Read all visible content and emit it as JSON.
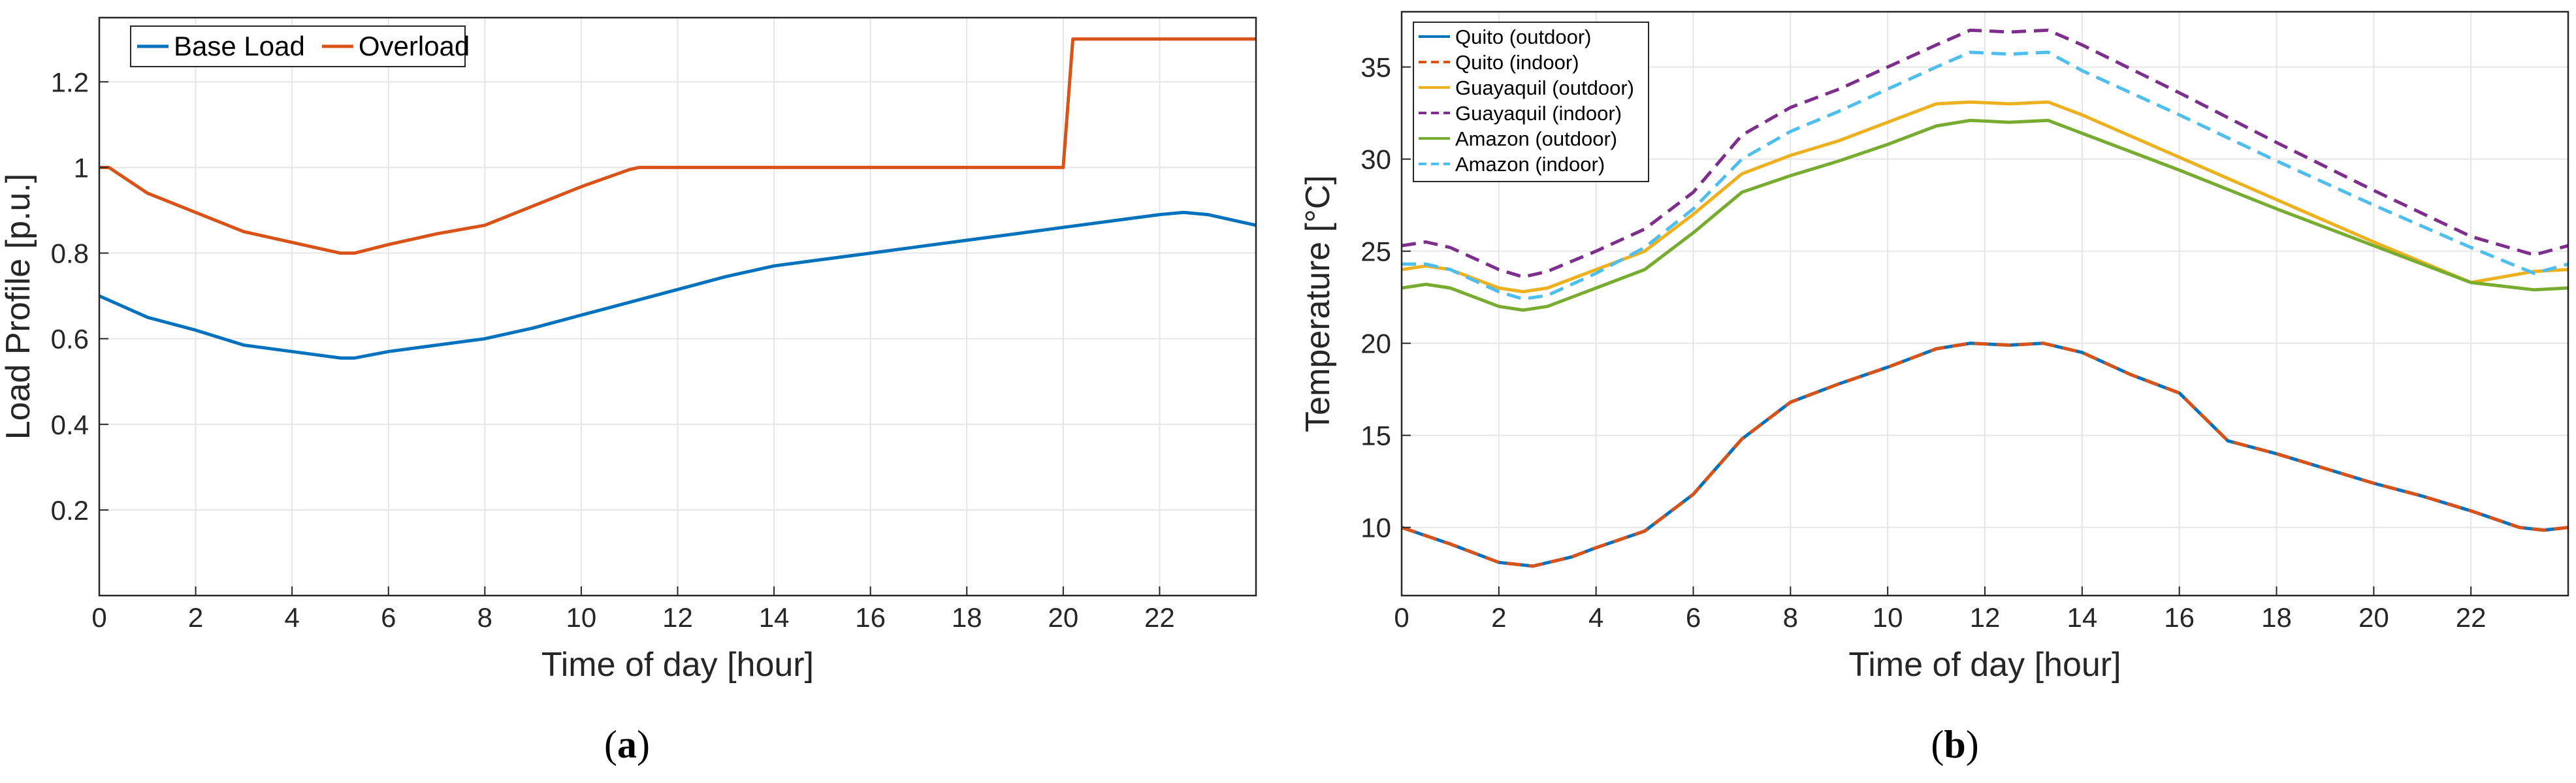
{
  "chart_data": [
    {
      "type": "line",
      "panel_label": "a",
      "xlabel": "Time of day [hour]",
      "ylabel": "Load Profile [p.u.]",
      "xlim": [
        0,
        24
      ],
      "ylim": [
        0,
        1.35
      ],
      "xticks": [
        0,
        2,
        4,
        6,
        8,
        10,
        12,
        14,
        16,
        18,
        20,
        22
      ],
      "xtick_labels": [
        "0",
        "2",
        "4",
        "6",
        "8",
        "10",
        "12",
        "14",
        "16",
        "18",
        "20",
        "22"
      ],
      "yticks": [
        0.2,
        0.4,
        0.6,
        0.8,
        1.0,
        1.2
      ],
      "ytick_labels": [
        "0.2",
        "0.4",
        "0.6",
        "0.8",
        "1",
        "1.2"
      ],
      "grid": true,
      "legend_position": "top-left",
      "series": [
        {
          "name": "Base Load",
          "color": "#0072BD",
          "dash": "solid",
          "x": [
            0,
            1,
            2,
            3,
            4,
            5,
            5.3,
            6,
            7,
            8,
            9,
            10,
            11,
            12,
            13,
            14,
            15,
            16,
            17,
            18,
            19,
            20,
            21,
            22,
            22.5,
            23,
            24
          ],
          "y": [
            0.7,
            0.65,
            0.62,
            0.585,
            0.57,
            0.555,
            0.555,
            0.57,
            0.585,
            0.6,
            0.625,
            0.655,
            0.685,
            0.715,
            0.745,
            0.77,
            0.785,
            0.8,
            0.815,
            0.83,
            0.845,
            0.86,
            0.875,
            0.89,
            0.895,
            0.89,
            0.865
          ]
        },
        {
          "name": "Overload",
          "color": "#D95319",
          "dash": "solid",
          "x": [
            0,
            0.2,
            1,
            2,
            3,
            4,
            5,
            5.3,
            6,
            7,
            8,
            9,
            10,
            11,
            11.2,
            12,
            14,
            16,
            18,
            20,
            20.2,
            21,
            22,
            23,
            24
          ],
          "y": [
            1.0,
            1.0,
            0.94,
            0.895,
            0.85,
            0.825,
            0.8,
            0.8,
            0.82,
            0.845,
            0.865,
            0.91,
            0.955,
            0.995,
            1.0,
            1.0,
            1.0,
            1.0,
            1.0,
            1.0,
            1.3,
            1.3,
            1.3,
            1.3,
            1.3
          ]
        }
      ]
    },
    {
      "type": "line",
      "panel_label": "b",
      "xlabel": "Time of day [hour]",
      "ylabel": "Temperature [°C]",
      "xlim": [
        0,
        24
      ],
      "ylim": [
        6.3,
        38
      ],
      "xticks": [
        0,
        2,
        4,
        6,
        8,
        10,
        12,
        14,
        16,
        18,
        20,
        22
      ],
      "xtick_labels": [
        "0",
        "2",
        "4",
        "6",
        "8",
        "10",
        "12",
        "14",
        "16",
        "18",
        "20",
        "22"
      ],
      "yticks": [
        10,
        15,
        20,
        25,
        30,
        35
      ],
      "ytick_labels": [
        "10",
        "15",
        "20",
        "25",
        "30",
        "35"
      ],
      "grid": true,
      "legend_position": "top-left",
      "series": [
        {
          "name": "Quito (outdoor)",
          "color": "#0072BD",
          "dash": "solid",
          "x": [
            0,
            1,
            2,
            2.7,
            3.5,
            4,
            5,
            6,
            7,
            8,
            9,
            10,
            11,
            11.7,
            12.5,
            13.2,
            14,
            15,
            16,
            17,
            18,
            19,
            20,
            21,
            22,
            23,
            23.5,
            24
          ],
          "y": [
            10.0,
            9.1,
            8.1,
            7.9,
            8.4,
            8.9,
            9.8,
            11.8,
            14.8,
            16.8,
            17.8,
            18.7,
            19.7,
            20.0,
            19.9,
            20.0,
            19.5,
            18.3,
            17.3,
            14.7,
            14.0,
            13.2,
            12.4,
            11.7,
            10.9,
            10.0,
            9.85,
            10.0
          ]
        },
        {
          "name": "Quito (indoor)",
          "color": "#D95319",
          "dash": "dashed",
          "x": [
            0,
            1,
            2,
            2.7,
            3.5,
            4,
            5,
            6,
            7,
            8,
            9,
            10,
            11,
            11.7,
            12.5,
            13.2,
            14,
            15,
            16,
            17,
            18,
            19,
            20,
            21,
            22,
            23,
            23.5,
            24
          ],
          "y": [
            10.0,
            9.1,
            8.1,
            7.9,
            8.4,
            8.9,
            9.8,
            11.8,
            14.8,
            16.8,
            17.8,
            18.7,
            19.7,
            20.0,
            19.9,
            20.0,
            19.5,
            18.3,
            17.3,
            14.7,
            14.0,
            13.2,
            12.4,
            11.7,
            10.9,
            10.0,
            9.85,
            10.0
          ]
        },
        {
          "name": "Guayaquil (outdoor)",
          "color": "#EDB120",
          "dash": "solid",
          "x": [
            0,
            0.5,
            1,
            2,
            2.5,
            3,
            4,
            5,
            6,
            7,
            8,
            9,
            10,
            11,
            11.7,
            12.5,
            13.3,
            14,
            16,
            18,
            20,
            22,
            23.3,
            24
          ],
          "y": [
            24.0,
            24.2,
            24.0,
            23.0,
            22.8,
            23.0,
            24.0,
            25.0,
            27.0,
            29.2,
            30.2,
            31.0,
            32.0,
            33.0,
            33.1,
            33.0,
            33.1,
            32.4,
            30.1,
            27.8,
            25.5,
            23.3,
            23.9,
            24.0
          ]
        },
        {
          "name": "Guayaquil (indoor)",
          "color": "#7E2F8E",
          "dash": "dashed",
          "x": [
            0,
            0.5,
            1,
            2,
            2.5,
            3,
            4,
            5,
            6,
            7,
            8,
            9,
            10,
            11,
            11.7,
            12.5,
            13.3,
            14,
            16,
            18,
            20,
            22,
            23.3,
            24
          ],
          "y": [
            25.3,
            25.5,
            25.2,
            24.0,
            23.6,
            23.9,
            25.0,
            26.2,
            28.2,
            31.3,
            32.8,
            33.8,
            35.0,
            36.2,
            37.0,
            36.9,
            37.0,
            36.2,
            33.6,
            30.9,
            28.3,
            25.8,
            24.8,
            25.3
          ]
        },
        {
          "name": "Amazon (outdoor)",
          "color": "#77AC30",
          "dash": "solid",
          "x": [
            0,
            0.5,
            1,
            2,
            2.5,
            3,
            4,
            5,
            6,
            7,
            8,
            9,
            10,
            11,
            11.7,
            12.5,
            13.3,
            14,
            16,
            18,
            20,
            22,
            23.3,
            24
          ],
          "y": [
            23.0,
            23.2,
            23.0,
            22.0,
            21.8,
            22.0,
            23.0,
            24.0,
            26.0,
            28.2,
            29.1,
            29.9,
            30.8,
            31.8,
            32.1,
            32.0,
            32.1,
            31.4,
            29.4,
            27.3,
            25.3,
            23.3,
            22.9,
            23.0
          ]
        },
        {
          "name": "Amazon (indoor)",
          "color": "#4DBEEE",
          "dash": "dashed",
          "x": [
            0,
            0.5,
            1,
            2,
            2.5,
            3,
            4,
            5,
            6,
            7,
            8,
            9,
            10,
            11,
            11.7,
            12.5,
            13.3,
            14,
            16,
            18,
            20,
            22,
            23.3,
            24
          ],
          "y": [
            24.3,
            24.3,
            24.0,
            22.8,
            22.4,
            22.6,
            23.8,
            25.2,
            27.3,
            30.0,
            31.5,
            32.6,
            33.8,
            35.0,
            35.8,
            35.7,
            35.8,
            34.8,
            32.4,
            29.9,
            27.5,
            25.2,
            23.8,
            24.3
          ]
        }
      ]
    }
  ]
}
